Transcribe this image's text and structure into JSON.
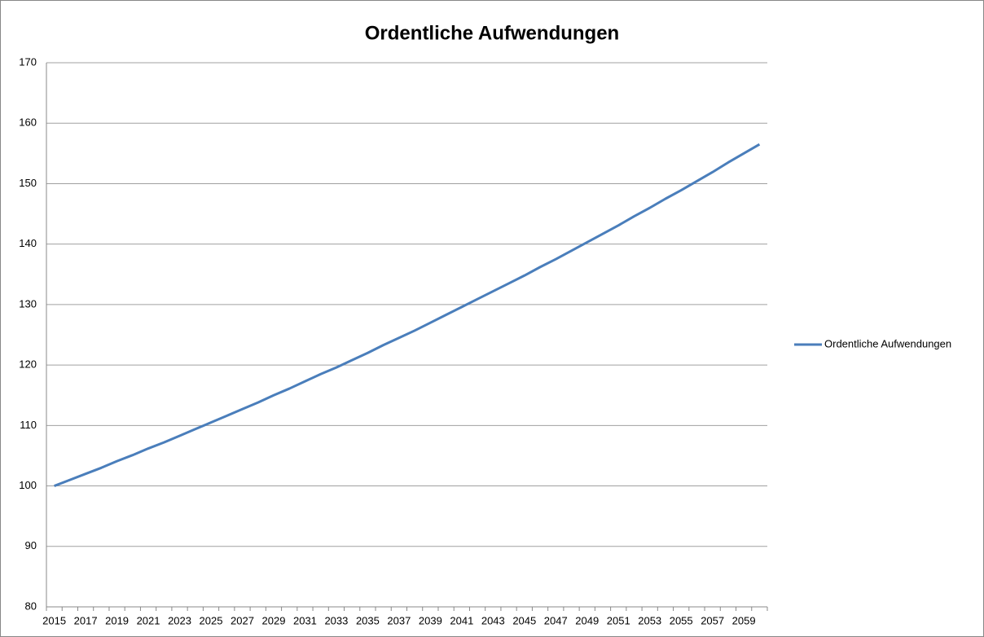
{
  "chart_data": {
    "type": "line",
    "title": "Ordentliche Aufwendungen",
    "categories": [
      "2015",
      null,
      "2017",
      null,
      "2019",
      null,
      "2021",
      null,
      "2023",
      null,
      "2025",
      null,
      "2027",
      null,
      "2029",
      null,
      "2031",
      null,
      "2033",
      null,
      "2035",
      null,
      "2037",
      null,
      "2039",
      null,
      "2041",
      null,
      "2043",
      null,
      "2045",
      null,
      "2047",
      null,
      "2049",
      null,
      "2051",
      null,
      "2053",
      null,
      "2055",
      null,
      "2057",
      null,
      "2059",
      null
    ],
    "series": [
      {
        "name": "Ordentliche Aufwendungen",
        "color": "#4a7ebb",
        "values": [
          100.0,
          101.0,
          102.0,
          103.0,
          104.1,
          105.1,
          106.2,
          107.2,
          108.3,
          109.4,
          110.5,
          111.6,
          112.7,
          113.8,
          115.0,
          116.1,
          117.3,
          118.5,
          119.6,
          120.8,
          122.0,
          123.3,
          124.5,
          125.7,
          127.0,
          128.3,
          129.6,
          130.9,
          132.2,
          133.5,
          134.8,
          136.2,
          137.5,
          138.9,
          140.3,
          141.7,
          143.1,
          144.6,
          146.0,
          147.5,
          148.9,
          150.4,
          151.9,
          153.5,
          155.0,
          156.5
        ]
      }
    ],
    "ylim": [
      80,
      170
    ],
    "yticks": [
      80,
      90,
      100,
      110,
      120,
      130,
      140,
      150,
      160,
      170
    ],
    "grid": true,
    "legend": "right"
  }
}
